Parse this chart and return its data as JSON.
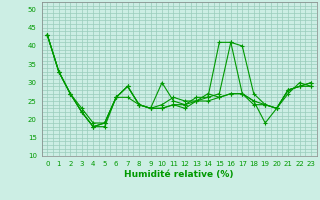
{
  "xlabel": "Humidité relative (%)",
  "bg_color": "#cceee4",
  "grid_color": "#99ccbb",
  "line_color": "#009900",
  "xlim": [
    -0.5,
    23.5
  ],
  "ylim": [
    10,
    52
  ],
  "yticks": [
    10,
    15,
    20,
    25,
    30,
    35,
    40,
    45,
    50
  ],
  "xticks": [
    0,
    1,
    2,
    3,
    4,
    5,
    6,
    7,
    8,
    9,
    10,
    11,
    12,
    13,
    14,
    15,
    16,
    17,
    18,
    19,
    20,
    21,
    22,
    23
  ],
  "series": [
    [
      43,
      33,
      27,
      23,
      19,
      19,
      26,
      29,
      24,
      23,
      24,
      26,
      25,
      25,
      27,
      26,
      27,
      27,
      25,
      24,
      23,
      28,
      29,
      30
    ],
    [
      43,
      33,
      27,
      22,
      18,
      19,
      26,
      29,
      24,
      23,
      30,
      25,
      24,
      26,
      26,
      27,
      41,
      40,
      27,
      24,
      23,
      28,
      29,
      30
    ],
    [
      43,
      33,
      27,
      22,
      18,
      19,
      26,
      29,
      24,
      23,
      23,
      24,
      23,
      25,
      26,
      41,
      41,
      27,
      25,
      19,
      23,
      27,
      30,
      29
    ],
    [
      43,
      33,
      27,
      22,
      18,
      18,
      26,
      26,
      24,
      23,
      23,
      24,
      24,
      25,
      25,
      26,
      27,
      27,
      24,
      24,
      23,
      28,
      29,
      29
    ]
  ]
}
